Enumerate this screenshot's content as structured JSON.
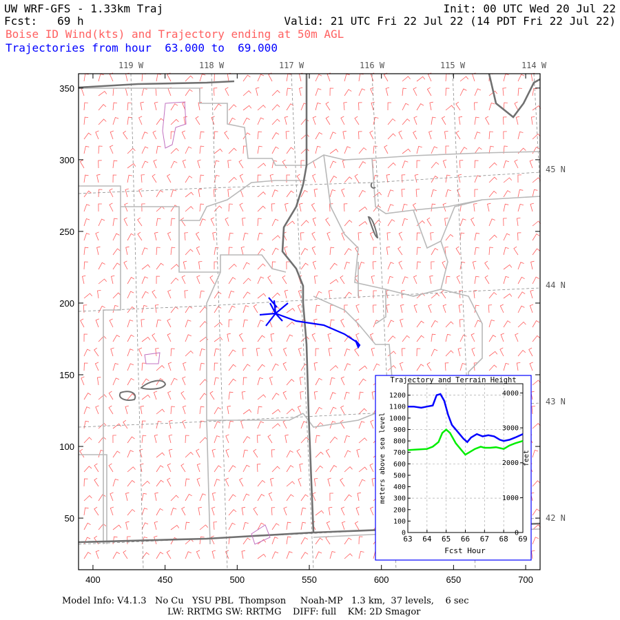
{
  "header": {
    "model_title": "UW WRF-GFS - 1.33km Traj",
    "init": "Init: 00 UTC Wed 20 Jul 22",
    "fcst": "Fcst:   69 h",
    "valid": "Valid: 21 UTC Fri 22 Jul 22 (14 PDT Fri 22 Jul 22)",
    "product": "Boise ID Wind(kts) and Trajectory ending at 50m AGL",
    "traj_range": "Trajectories from hour  63.000 to  69.000"
  },
  "colors": {
    "product_text": "#ff6060",
    "traj_text": "#0000ff",
    "wind_barb": "#ff5a5a",
    "trajectory": "#0000ff",
    "terrain_line": "#00ee00",
    "county_line": "#b8b8b8",
    "state_line": "#707070",
    "grid_line": "#8a8a8a",
    "landuse": "#c070c0"
  },
  "map": {
    "x_ticks": [
      "400",
      "450",
      "500",
      "550",
      "600",
      "650",
      "700"
    ],
    "y_ticks": [
      "350",
      "300",
      "250",
      "200",
      "150",
      "100",
      "50"
    ],
    "lon_labels": [
      "119 W",
      "118 W",
      "117 W",
      "116 W",
      "115 W",
      "114 W"
    ],
    "lat_labels": [
      "45 N",
      "44 N",
      "43 N",
      "42 N"
    ]
  },
  "inset": {
    "title": "Trajectory and Terrain Height",
    "ylabel_left": "meters above sea level",
    "ylabel_right": "feet",
    "xlabel": "Fcst Hour",
    "x_ticks": [
      "63",
      "64",
      "65",
      "66",
      "67",
      "68",
      "69"
    ],
    "y_ticks_left": [
      "1200",
      "1100",
      "1000",
      "900",
      "800",
      "700",
      "600",
      "500",
      "400",
      "300",
      "200",
      "100",
      "0"
    ],
    "y_ticks_right": [
      "4000",
      "3000",
      "2000",
      "1000",
      "0"
    ]
  },
  "chart_data": {
    "type": "line",
    "title": "Trajectory and Terrain Height",
    "xlabel": "Fcst Hour",
    "ylabel": "meters above sea level",
    "xlim": [
      63,
      69
    ],
    "ylim": [
      0,
      1300
    ],
    "series": [
      {
        "name": "trajectory",
        "color": "#0000ff",
        "x": [
          63.0,
          63.3,
          63.7,
          64.0,
          64.3,
          64.5,
          64.7,
          64.9,
          65.1,
          65.3,
          65.6,
          65.9,
          66.1,
          66.3,
          66.6,
          66.9,
          67.2,
          67.5,
          67.8,
          68.0,
          68.3,
          68.6,
          69.0
        ],
        "y": [
          1100,
          1100,
          1090,
          1100,
          1110,
          1200,
          1210,
          1150,
          1030,
          940,
          880,
          820,
          790,
          830,
          860,
          840,
          850,
          840,
          810,
          800,
          810,
          830,
          860
        ]
      },
      {
        "name": "terrain",
        "color": "#00ee00",
        "x": [
          63.0,
          63.5,
          64.0,
          64.3,
          64.6,
          64.8,
          65.0,
          65.2,
          65.5,
          65.8,
          66.0,
          66.2,
          66.5,
          66.8,
          67.0,
          67.3,
          67.6,
          68.0,
          68.3,
          68.6,
          69.0
        ],
        "y": [
          720,
          725,
          730,
          750,
          790,
          870,
          900,
          870,
          780,
          720,
          680,
          700,
          730,
          750,
          740,
          740,
          745,
          730,
          760,
          780,
          800
        ]
      }
    ]
  },
  "footer": {
    "model_info": "Model Info: V4.1.3   No Cu   YSU PBL  Thompson     Noah-MP   1.3 km,  37 levels,    6 sec",
    "physics": "LW: RRTMG SW: RRTMG    DIFF: full    KM: 2D Smagor"
  }
}
